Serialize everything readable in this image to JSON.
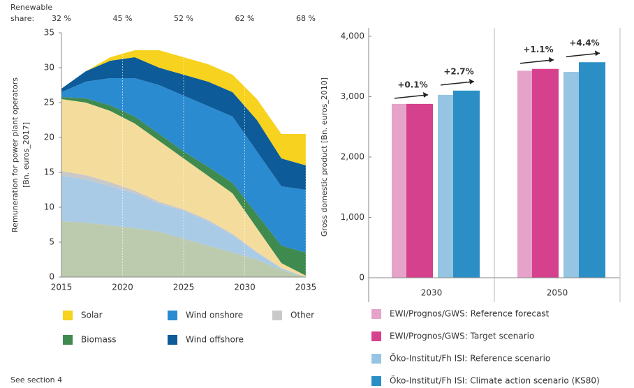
{
  "chart_data": [
    {
      "type": "area",
      "top_labels": {
        "title": [
          "Renewable",
          "share:"
        ],
        "x": [
          2015,
          2020,
          2025,
          2030,
          2035
        ],
        "labels": [
          "32 %",
          "45 %",
          "52 %",
          "62 %",
          "68 %"
        ]
      },
      "ylabel": [
        "Remuneration for power plant operators",
        "[Bn. euros_2017]"
      ],
      "x": [
        2015,
        2017,
        2019,
        2021,
        2023,
        2025,
        2027,
        2029,
        2031,
        2033,
        2035
      ],
      "xlim": [
        2015,
        2035
      ],
      "xticks": [
        2015,
        2020,
        2025,
        2030,
        2035
      ],
      "ylim": [
        0,
        35
      ],
      "yticks": [
        0,
        5,
        10,
        15,
        20,
        25,
        30,
        35
      ],
      "grid": true,
      "series": [
        {
          "color": "#bccbae",
          "values": [
            8,
            7.8,
            7.4,
            7,
            6.5,
            5.5,
            4.5,
            3.5,
            2.5,
            1,
            0
          ]
        },
        {
          "color": "#a9cbe6",
          "values": [
            6.5,
            6.2,
            5.6,
            5,
            4,
            4,
            3.5,
            2.5,
            1,
            0.2,
            0
          ]
        },
        {
          "name": "Other",
          "color": "#c9c9c9",
          "values": [
            0.7,
            0.6,
            0.6,
            0.4,
            0.3,
            0.2,
            0.2,
            0.2,
            0.1,
            0.1,
            0
          ]
        },
        {
          "color": "#f4dd9c",
          "values": [
            10.3,
            10.4,
            10.2,
            9.6,
            8.7,
            7.3,
            6.3,
            5.8,
            3.4,
            0.7,
            0.2
          ]
        },
        {
          "name": "Biomass",
          "color": "#3f8a4f",
          "values": [
            0.3,
            0.6,
            0.8,
            1,
            1,
            1,
            1.3,
            1.5,
            2,
            2.5,
            3.3
          ]
        },
        {
          "name": "Wind onshore",
          "color": "#2b8bd0",
          "values": [
            0.7,
            2.4,
            3.9,
            5.5,
            7,
            8,
            8.7,
            9.5,
            9,
            8.5,
            9
          ]
        },
        {
          "name": "Wind offshore",
          "color": "#0d5b98",
          "values": [
            0.5,
            1.5,
            2.5,
            3,
            2.5,
            3,
            3.5,
            3.5,
            4.5,
            4,
            3.5
          ]
        },
        {
          "name": "Solar",
          "color": "#f7d21e",
          "values": [
            0,
            0,
            0.5,
            1,
            2.5,
            2.5,
            2.5,
            2.5,
            3,
            3.5,
            4.5
          ]
        }
      ]
    },
    {
      "type": "bar",
      "ylabel": "Gross domestic product [Bn. euros_2010]",
      "categories": [
        "2030",
        "2050"
      ],
      "ylim": [
        0,
        4000
      ],
      "yticks": [
        0,
        {
          "value": 1000,
          "label": "1,000"
        },
        {
          "value": 2000,
          "label": "2,000"
        },
        {
          "value": 3000,
          "label": "3,000"
        },
        {
          "value": 4000,
          "label": "4,000"
        }
      ],
      "series": [
        {
          "name": "EWI/Prognos/GWS: Reference forecast",
          "color": "#e6a3c9",
          "values": [
            2880,
            3430
          ]
        },
        {
          "name": "EWI/Prognos/GWS: Target scenario",
          "color": "#d6418d",
          "values": [
            2880,
            3460
          ]
        },
        {
          "name": "Öko-Institut/Fh ISI: Reference scenario",
          "color": "#96c5e3",
          "values": [
            3030,
            3410
          ]
        },
        {
          "name": "Öko-Institut/Fh ISI: Climate action scenario (KS80)",
          "color": "#2b8fc6",
          "values": [
            3100,
            3570
          ]
        }
      ],
      "annotations": [
        [
          "+0.1%",
          "+2.7%"
        ],
        [
          "+1.1%",
          "+4.4%"
        ]
      ]
    }
  ],
  "footnote": "See section 4"
}
